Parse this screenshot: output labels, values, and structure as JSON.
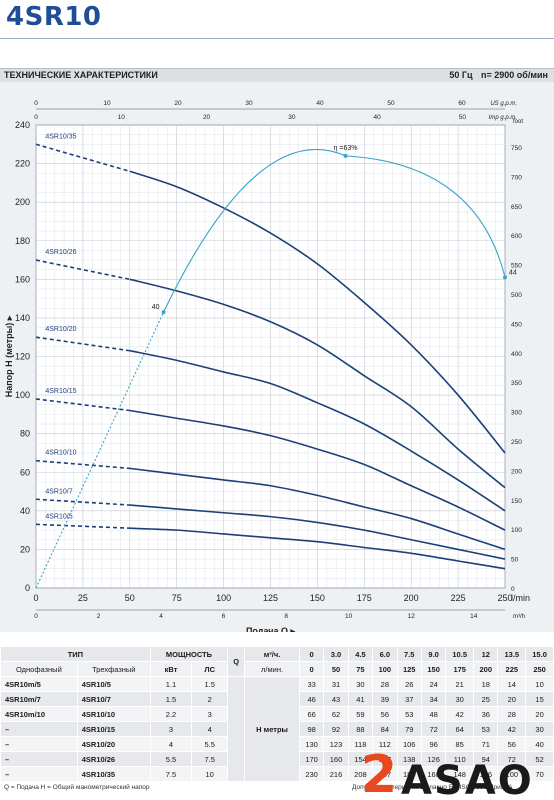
{
  "header": {
    "model": "4SR10"
  },
  "spec_bar": {
    "title": "ТЕХНИЧЕСКИЕ ХАРАКТЕРИСТИКИ",
    "freq": "50 Гц",
    "speed": "n= 2900 об/мин"
  },
  "chart_data": {
    "type": "line",
    "ylabel": "Напор H (метры)",
    "xlabel": "Подача Q",
    "x_unit": "l/min",
    "right_unit": "feet",
    "usgpm_unit": "US g.p.m.",
    "impgpm_unit": "Imp g.p.m.",
    "m3h_unit": "m³/h",
    "xlim": [
      0,
      250
    ],
    "ylim": [
      0,
      240
    ],
    "x_ticks": [
      0,
      25,
      50,
      75,
      100,
      125,
      150,
      175,
      200,
      225,
      250
    ],
    "y_ticks": [
      0,
      20,
      40,
      60,
      80,
      100,
      120,
      140,
      160,
      180,
      200,
      220,
      240
    ],
    "feet_ticks": [
      0,
      50,
      100,
      150,
      200,
      250,
      300,
      350,
      400,
      450,
      500,
      550,
      600,
      650,
      700,
      750
    ],
    "feet_label": "foot",
    "usgpm_ticks": [
      0,
      10,
      20,
      30,
      40,
      50,
      60
    ],
    "impgpm_ticks": [
      0,
      10,
      20,
      30,
      40,
      50
    ],
    "m3h_ticks": [
      0,
      2,
      4,
      6,
      8,
      10,
      12,
      14
    ],
    "series": [
      {
        "name": "4SR10/5",
        "x": [
          0,
          50,
          75,
          100,
          125,
          150,
          175,
          200,
          225,
          250
        ],
        "values": [
          33,
          31,
          30,
          28,
          26,
          24,
          21,
          18,
          14,
          10
        ]
      },
      {
        "name": "4SR10/7",
        "x": [
          0,
          50,
          75,
          100,
          125,
          150,
          175,
          200,
          225,
          250
        ],
        "values": [
          46,
          43,
          41,
          39,
          37,
          34,
          30,
          25,
          20,
          15
        ]
      },
      {
        "name": "4SR10/10",
        "x": [
          0,
          50,
          75,
          100,
          125,
          150,
          175,
          200,
          225,
          250
        ],
        "values": [
          66,
          62,
          59,
          56,
          53,
          48,
          42,
          36,
          28,
          20
        ]
      },
      {
        "name": "4SR10/15",
        "x": [
          0,
          50,
          75,
          100,
          125,
          150,
          175,
          200,
          225,
          250
        ],
        "values": [
          98,
          92,
          88,
          84,
          79,
          72,
          64,
          53,
          42,
          30
        ]
      },
      {
        "name": "4SR10/20",
        "x": [
          0,
          50,
          75,
          100,
          125,
          150,
          175,
          200,
          225,
          250
        ],
        "values": [
          130,
          123,
          118,
          112,
          106,
          96,
          85,
          71,
          56,
          40
        ]
      },
      {
        "name": "4SR10/26",
        "x": [
          0,
          50,
          75,
          100,
          125,
          150,
          175,
          200,
          225,
          250
        ],
        "values": [
          170,
          160,
          154,
          147,
          138,
          126,
          110,
          94,
          72,
          52
        ]
      },
      {
        "name": "4SR10/35",
        "x": [
          0,
          50,
          75,
          100,
          125,
          150,
          175,
          200,
          225,
          250
        ],
        "values": [
          230,
          216,
          208,
          197,
          184,
          168,
          148,
          126,
          100,
          70
        ]
      }
    ],
    "efficiency": {
      "label": "η =63%",
      "peak_value": "63",
      "points": [
        {
          "x": 0,
          "y": 0
        },
        {
          "x": 68,
          "y": 143
        },
        {
          "x": 165,
          "y": 224
        },
        {
          "x": 250,
          "y": 161
        }
      ],
      "point_labels": [
        "40",
        "44"
      ]
    }
  },
  "table": {
    "head": {
      "type": "ТИП",
      "power": "МОЩНОСТЬ",
      "q_label": "Q",
      "m3h": "м³/ч.",
      "lmin": "л/мин.",
      "single": "Однофазный",
      "three": "Трехфазный",
      "kw": "кВт",
      "hp": "ЛС",
      "h_label": "H  метры"
    },
    "m3h_values": [
      "0",
      "3.0",
      "4.5",
      "6.0",
      "7.5",
      "9.0",
      "10.5",
      "12",
      "13.5",
      "15.0"
    ],
    "lmin_values": [
      "0",
      "50",
      "75",
      "100",
      "125",
      "150",
      "175",
      "200",
      "225",
      "250"
    ],
    "rows": [
      {
        "single": "4SR10m/5",
        "three": "4SR10/5",
        "kw": "1.1",
        "hp": "1.5",
        "h": [
          "33",
          "31",
          "30",
          "28",
          "26",
          "24",
          "21",
          "18",
          "14",
          "10"
        ]
      },
      {
        "single": "4SR10m/7",
        "three": "4SR10/7",
        "kw": "1.5",
        "hp": "2",
        "h": [
          "46",
          "43",
          "41",
          "39",
          "37",
          "34",
          "30",
          "25",
          "20",
          "15"
        ]
      },
      {
        "single": "4SR10m/10",
        "three": "4SR10/10",
        "kw": "2.2",
        "hp": "3",
        "h": [
          "66",
          "62",
          "59",
          "56",
          "53",
          "48",
          "42",
          "36",
          "28",
          "20"
        ]
      },
      {
        "single": "–",
        "three": "4SR10/15",
        "kw": "3",
        "hp": "4",
        "h": [
          "98",
          "92",
          "88",
          "84",
          "79",
          "72",
          "64",
          "53",
          "42",
          "30"
        ]
      },
      {
        "single": "–",
        "three": "4SR10/20",
        "kw": "4",
        "hp": "5.5",
        "h": [
          "130",
          "123",
          "118",
          "112",
          "106",
          "96",
          "85",
          "71",
          "56",
          "40"
        ]
      },
      {
        "single": "–",
        "three": "4SR10/26",
        "kw": "5.5",
        "hp": "7.5",
        "h": [
          "170",
          "160",
          "154",
          "147",
          "138",
          "126",
          "110",
          "94",
          "72",
          "52"
        ]
      },
      {
        "single": "–",
        "three": "4SR10/35",
        "kw": "7.5",
        "hp": "10",
        "h": [
          "230",
          "216",
          "208",
          "197",
          "184",
          "168",
          "148",
          "126",
          "100",
          "70"
        ]
      }
    ]
  },
  "footer": {
    "note": "Q = Подача   H = Общий манометрический напор",
    "right_note": "Допуск характеристик согласно EN ISO 9906 Прил. A"
  },
  "logo": {
    "text": "ASAO",
    "digit": "2"
  },
  "colors": {
    "brand": "#1f4e96",
    "curve": "#1d3f78",
    "efficiency": "#3aa3c8"
  }
}
